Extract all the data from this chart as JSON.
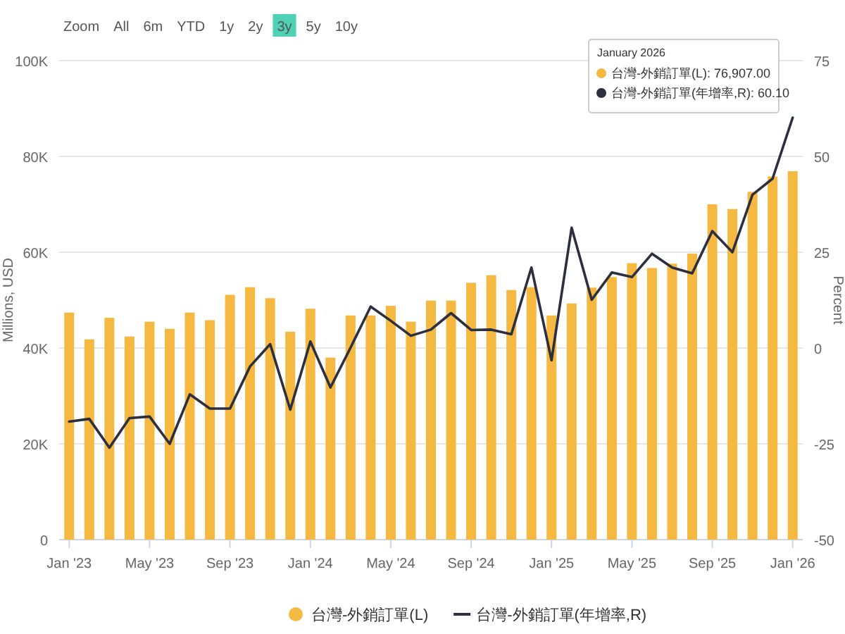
{
  "chart_data": {
    "type": "bar",
    "categories": [
      "Jan '23",
      null,
      null,
      null,
      "May '23",
      null,
      null,
      null,
      "Sep '23",
      null,
      null,
      null,
      "Jan '24",
      null,
      null,
      null,
      "May '24",
      null,
      null,
      null,
      "Sep '24",
      null,
      null,
      null,
      "Jan '25",
      null,
      null,
      null,
      "May '25",
      null,
      null,
      null,
      "Sep '25",
      null,
      null,
      null,
      "Jan '26"
    ],
    "series": [
      {
        "name": "台灣-外銷訂單(L)",
        "axis": "y",
        "color": "#f5b841",
        "values": [
          47400,
          41800,
          46300,
          42400,
          45500,
          44000,
          47400,
          45800,
          51100,
          52700,
          50400,
          43400,
          48200,
          38000,
          46800,
          46800,
          48800,
          45500,
          49900,
          49900,
          53600,
          55200,
          52100,
          52700,
          46800,
          49300,
          52600,
          54800,
          57700,
          56700,
          57600,
          59700,
          70000,
          69000,
          72600,
          75800,
          76907
        ]
      },
      {
        "name": "台灣-外銷訂單(年增率,R)",
        "type": "line",
        "axis": "y2",
        "color": "#2b2f3f",
        "values": [
          -19.2,
          -18.5,
          -26.0,
          -18.3,
          -17.9,
          -25.0,
          -12.1,
          -15.8,
          -15.8,
          -4.8,
          1.0,
          -16.1,
          1.7,
          -10.3,
          0.1,
          10.8,
          7.1,
          3.2,
          4.8,
          9.1,
          4.7,
          4.8,
          3.6,
          21.0,
          -3.2,
          31.4,
          12.6,
          19.7,
          18.5,
          24.6,
          21.0,
          19.5,
          30.5,
          25.0,
          40.0,
          44.2,
          60.1
        ]
      }
    ],
    "ylabel": "Millions, USD",
    "y2label": "Percent",
    "ylim": [
      0,
      100000
    ],
    "yticks": [
      {
        "value": 0,
        "label": "0"
      },
      {
        "value": 20000,
        "label": "20K"
      },
      {
        "value": 40000,
        "label": "40K"
      },
      {
        "value": 60000,
        "label": "60K"
      },
      {
        "value": 80000,
        "label": "80K"
      },
      {
        "value": 100000,
        "label": "100K"
      }
    ],
    "y2lim": [
      -50,
      75
    ],
    "y2ticks": [
      -50,
      -25,
      0,
      25,
      50,
      75
    ],
    "grid": "y",
    "legend": "bottom",
    "annotations": [
      "Zoom",
      "All",
      "6m",
      "YTD",
      "1y",
      "2y",
      "3y",
      "5y",
      "10y",
      "January 2026",
      "台灣-外銷訂單(L): 76,907.00",
      "台灣-外銷訂單(年增率,R): 60.10"
    ]
  }
}
